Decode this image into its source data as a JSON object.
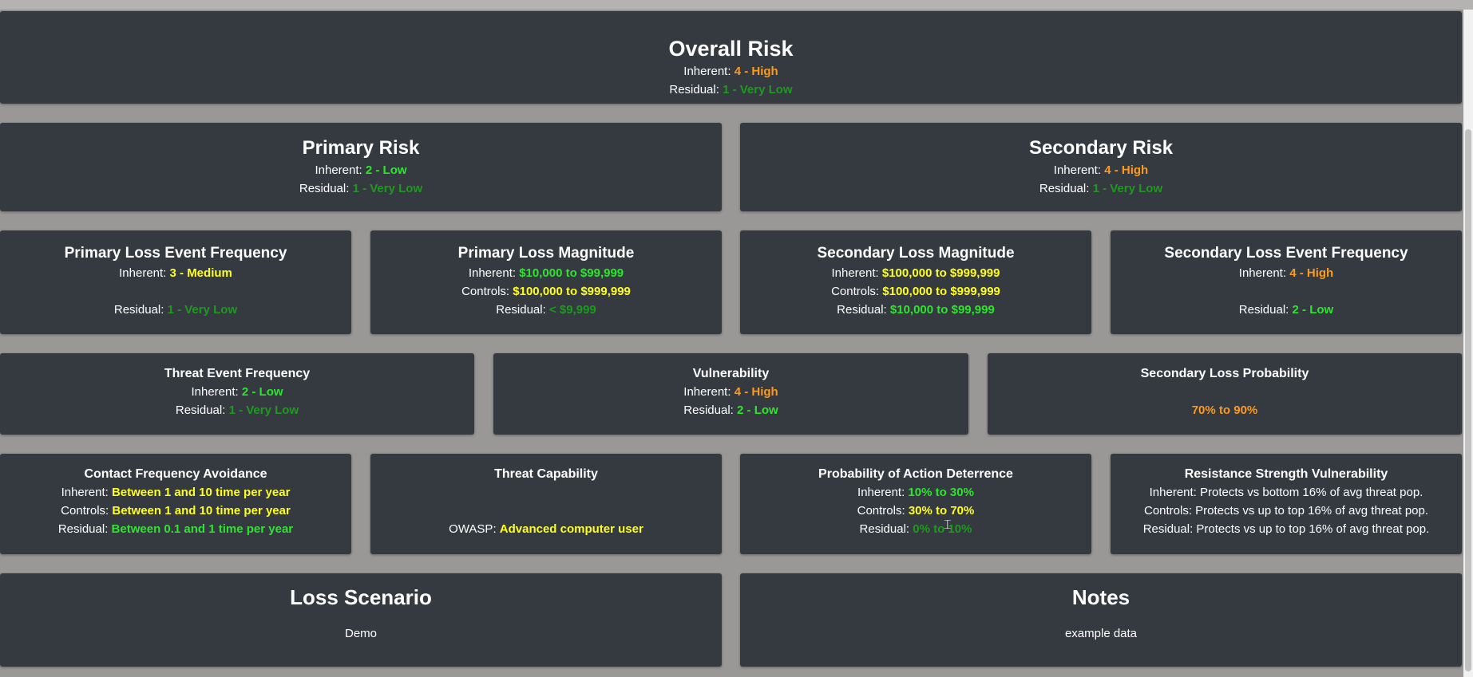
{
  "overall": {
    "title": "Overall Risk",
    "inherent_label": "Inherent:",
    "inherent_value": "4 - High",
    "residual_label": "Residual:",
    "residual_value": "1 - Very Low"
  },
  "primary_risk": {
    "title": "Primary Risk",
    "inherent_label": "Inherent:",
    "inherent_value": "2 - Low",
    "residual_label": "Residual:",
    "residual_value": "1 - Very Low"
  },
  "secondary_risk": {
    "title": "Secondary Risk",
    "inherent_label": "Inherent:",
    "inherent_value": "4 - High",
    "residual_label": "Residual:",
    "residual_value": "1 - Very Low"
  },
  "primary_lef": {
    "title": "Primary Loss Event Frequency",
    "inherent_label": "Inherent:",
    "inherent_value": "3 - Medium",
    "residual_label": "Residual:",
    "residual_value": "1 - Very Low"
  },
  "primary_lm": {
    "title": "Primary Loss Magnitude",
    "inherent_label": "Inherent:",
    "inherent_value": "$10,000 to $99,999",
    "controls_label": "Controls:",
    "controls_value": "$100,000 to $999,999",
    "residual_label": "Residual:",
    "residual_value": "< $9,999"
  },
  "secondary_lm": {
    "title": "Secondary Loss Magnitude",
    "inherent_label": "Inherent:",
    "inherent_value": "$100,000 to $999,999",
    "controls_label": "Controls:",
    "controls_value": "$100,000 to $999,999",
    "residual_label": "Residual:",
    "residual_value": "$10,000 to $99,999"
  },
  "secondary_lef": {
    "title": "Secondary Loss Event Frequency",
    "inherent_label": "Inherent:",
    "inherent_value": "4 - High",
    "residual_label": "Residual:",
    "residual_value": "2 - Low"
  },
  "tef": {
    "title": "Threat Event Frequency",
    "inherent_label": "Inherent:",
    "inherent_value": "2 - Low",
    "residual_label": "Residual:",
    "residual_value": "1 - Very Low"
  },
  "vuln": {
    "title": "Vulnerability",
    "inherent_label": "Inherent:",
    "inherent_value": "4 - High",
    "residual_label": "Residual:",
    "residual_value": "2 - Low"
  },
  "slp": {
    "title": "Secondary Loss Probability",
    "value": "70% to 90%"
  },
  "cfa": {
    "title": "Contact Frequency Avoidance",
    "inherent_label": "Inherent:",
    "inherent_value": "Between 1 and 10 time per year",
    "controls_label": "Controls:",
    "controls_value": "Between 1 and 10 time per year",
    "residual_label": "Residual:",
    "residual_value": "Between 0.1 and 1 time per year"
  },
  "tcap": {
    "title": "Threat Capability",
    "owasp_label": "OWASP:",
    "owasp_value": "Advanced computer user"
  },
  "pad": {
    "title": "Probability of Action Deterrence",
    "inherent_label": "Inherent:",
    "inherent_value": "10% to 30%",
    "controls_label": "Controls:",
    "controls_value": "30% to 70%",
    "residual_label": "Residual:",
    "residual_value": "0% to 10%"
  },
  "rsv": {
    "title": "Resistance Strength Vulnerability",
    "inherent_text": "Inherent: Protects vs bottom 16% of avg threat pop.",
    "controls_text": "Controls: Protects vs up to top 16% of avg threat pop.",
    "residual_text": "Residual: Protects vs up to top 16% of avg threat pop."
  },
  "loss_scenario": {
    "title": "Loss Scenario",
    "text": "Demo"
  },
  "notes": {
    "title": "Notes",
    "text": "example data"
  },
  "colors": {
    "background": "#9a9897",
    "card": "#343a40",
    "high": "#fd9a1e",
    "low": "#2ee52e",
    "very_low": "#1e9a1e",
    "medium": "#ffff1e"
  }
}
